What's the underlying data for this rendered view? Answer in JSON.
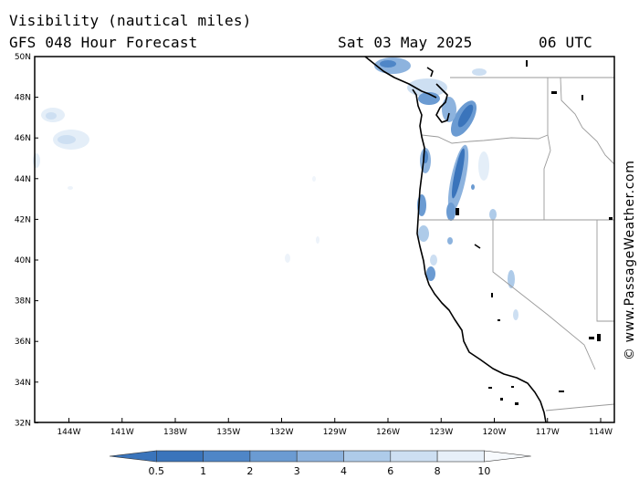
{
  "header": {
    "title": "Visibility (nautical miles)",
    "model": "GFS 048 Hour Forecast",
    "date": "Sat 03 May 2025",
    "time": "06 UTC"
  },
  "map": {
    "lat_labels": [
      "50N",
      "48N",
      "46N",
      "44N",
      "42N",
      "40N",
      "38N",
      "36N",
      "34N",
      "32N"
    ],
    "lon_labels": [
      "144W",
      "141W",
      "138W",
      "135W",
      "132W",
      "129W",
      "126W",
      "123W",
      "120W",
      "117W",
      "114W"
    ],
    "credit": "© www.PassageWeather.com"
  },
  "colorbar": {
    "labels": [
      "0.5",
      "1",
      "2",
      "3",
      "4",
      "6",
      "8",
      "10"
    ],
    "colors": [
      "#3a74bb",
      "#4f86c7",
      "#6b9bd2",
      "#8db3de",
      "#aecbe9",
      "#cddff2",
      "#e7f0f9",
      "#f7fafd"
    ]
  }
}
